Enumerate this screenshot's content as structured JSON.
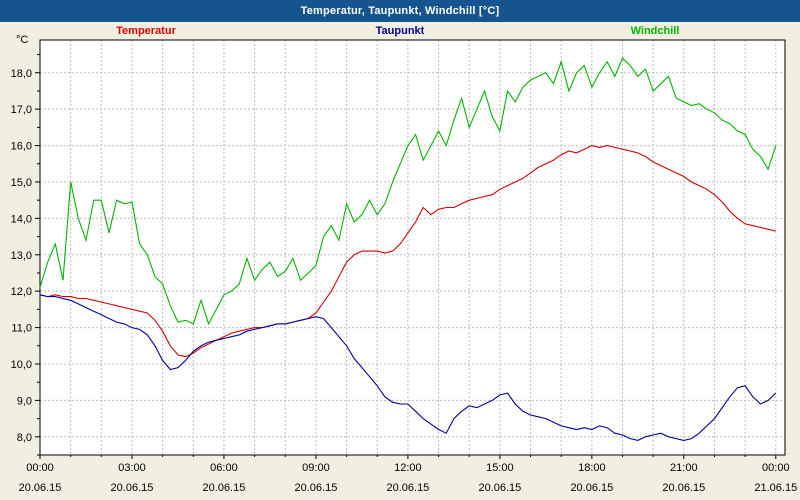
{
  "window": {
    "title": "Temperatur, Taupunkt, Windchill [°C]",
    "titlebar_color": "#15548f",
    "background_color": "#f1efe2"
  },
  "legend": [
    {
      "label": "Temperatur",
      "color": "#d40000"
    },
    {
      "label": "Taupunkt",
      "color": "#000099"
    },
    {
      "label": "Windchill",
      "color": "#00b400"
    }
  ],
  "axes": {
    "unit_label": "°C",
    "y_tick_values": [
      8,
      9,
      10,
      11,
      12,
      13,
      14,
      15,
      16,
      17,
      18
    ],
    "y_tick_labels": [
      "8,0",
      "9,0",
      "10,0",
      "11,0",
      "12,0",
      "13,0",
      "14,0",
      "15,0",
      "16,0",
      "17,0",
      "18,0"
    ],
    "x_tick_hours": [
      0,
      3,
      6,
      9,
      12,
      15,
      18,
      21,
      24
    ],
    "x_tick_labels": [
      "00:00",
      "03:00",
      "06:00",
      "09:00",
      "12:00",
      "15:00",
      "18:00",
      "21:00",
      "00:00"
    ],
    "x_tick_dates": [
      "20.06.15",
      "20.06.15",
      "20.06.15",
      "20.06.15",
      "20.06.15",
      "20.06.15",
      "20.06.15",
      "20.06.15",
      "21.06.15"
    ]
  },
  "chart_data": {
    "type": "line",
    "title": "Temperatur, Taupunkt, Windchill [°C]",
    "xlabel": "",
    "ylabel": "°C",
    "x_unit": "hours since 20.06.15 00:00",
    "x_step_hours": 0.25,
    "xlim": [
      0,
      24.3
    ],
    "ylim": [
      7.5,
      18.9
    ],
    "grid": "dashed; vertical each hour, horizontal each 1.0 °C",
    "grid_color": "#bdbdbd",
    "legend_position": "top",
    "legend": [
      "Temperatur",
      "Taupunkt",
      "Windchill"
    ],
    "series": [
      {
        "name": "Temperatur",
        "color": "#d40000",
        "values": [
          11.9,
          11.85,
          11.9,
          11.85,
          11.85,
          11.8,
          11.8,
          11.75,
          11.7,
          11.65,
          11.6,
          11.55,
          11.5,
          11.45,
          11.4,
          11.2,
          10.9,
          10.5,
          10.25,
          10.2,
          10.3,
          10.45,
          10.55,
          10.65,
          10.75,
          10.85,
          10.9,
          10.95,
          11.0,
          11.0,
          11.05,
          11.1,
          11.1,
          11.15,
          11.2,
          11.25,
          11.4,
          11.7,
          12.0,
          12.4,
          12.8,
          13.0,
          13.1,
          13.1,
          13.1,
          13.05,
          13.1,
          13.3,
          13.6,
          13.9,
          14.3,
          14.1,
          14.25,
          14.3,
          14.3,
          14.4,
          14.5,
          14.55,
          14.6,
          14.65,
          14.8,
          14.9,
          15.0,
          15.1,
          15.25,
          15.4,
          15.5,
          15.6,
          15.75,
          15.85,
          15.8,
          15.9,
          16.0,
          15.95,
          16.0,
          15.95,
          15.9,
          15.85,
          15.8,
          15.7,
          15.55,
          15.45,
          15.35,
          15.25,
          15.15,
          15.0,
          14.9,
          14.8,
          14.65,
          14.45,
          14.2,
          14.0,
          13.85,
          13.8,
          13.75,
          13.7,
          13.65
        ]
      },
      {
        "name": "Taupunkt",
        "color": "#000099",
        "values": [
          11.9,
          11.85,
          11.85,
          11.8,
          11.75,
          11.65,
          11.55,
          11.45,
          11.35,
          11.25,
          11.15,
          11.1,
          11.0,
          10.95,
          10.8,
          10.5,
          10.1,
          9.85,
          9.9,
          10.1,
          10.35,
          10.5,
          10.6,
          10.65,
          10.7,
          10.75,
          10.8,
          10.9,
          10.95,
          11.0,
          11.05,
          11.1,
          11.1,
          11.15,
          11.2,
          11.25,
          11.3,
          11.25,
          11.0,
          10.75,
          10.5,
          10.15,
          9.9,
          9.65,
          9.4,
          9.1,
          8.95,
          8.9,
          8.9,
          8.7,
          8.5,
          8.35,
          8.2,
          8.1,
          8.5,
          8.7,
          8.85,
          8.8,
          8.9,
          9.0,
          9.15,
          9.2,
          8.9,
          8.7,
          8.6,
          8.55,
          8.5,
          8.4,
          8.3,
          8.25,
          8.2,
          8.25,
          8.2,
          8.3,
          8.25,
          8.1,
          8.05,
          7.95,
          7.9,
          8.0,
          8.05,
          8.1,
          8.0,
          7.95,
          7.9,
          7.95,
          8.1,
          8.3,
          8.5,
          8.8,
          9.1,
          9.35,
          9.4,
          9.1,
          8.9,
          9.0,
          9.2
        ]
      },
      {
        "name": "Windchill",
        "color": "#00b400",
        "values": [
          12.1,
          12.8,
          13.3,
          12.3,
          15.0,
          14.0,
          13.4,
          14.5,
          14.5,
          13.6,
          14.5,
          14.4,
          14.45,
          13.3,
          13.0,
          12.4,
          12.2,
          11.6,
          11.15,
          11.2,
          11.1,
          11.75,
          11.1,
          11.5,
          11.9,
          12.0,
          12.2,
          12.9,
          12.3,
          12.6,
          12.8,
          12.4,
          12.55,
          12.9,
          12.3,
          12.5,
          12.7,
          13.5,
          13.8,
          13.4,
          14.4,
          13.9,
          14.1,
          14.5,
          14.1,
          14.4,
          15.0,
          15.5,
          16.0,
          16.3,
          15.6,
          16.0,
          16.4,
          16.0,
          16.7,
          17.3,
          16.5,
          17.0,
          17.5,
          16.8,
          16.4,
          17.5,
          17.2,
          17.6,
          17.8,
          17.9,
          18.0,
          17.7,
          18.3,
          17.5,
          18.0,
          18.2,
          17.6,
          18.0,
          18.3,
          17.9,
          18.4,
          18.2,
          17.9,
          18.1,
          17.5,
          17.7,
          17.9,
          17.3,
          17.2,
          17.1,
          17.15,
          17.0,
          16.9,
          16.7,
          16.6,
          16.4,
          16.3,
          15.9,
          15.7,
          15.35,
          16.0
        ]
      }
    ]
  }
}
